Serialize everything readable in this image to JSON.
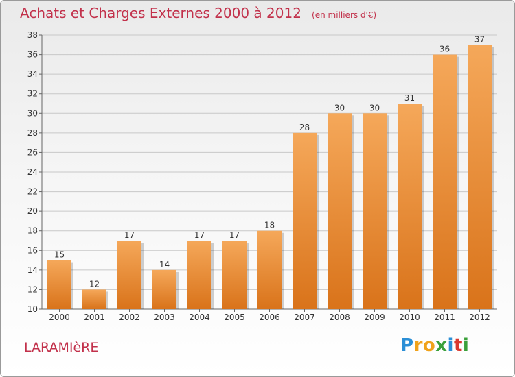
{
  "title": "Achats et Charges Externes 2000 à 2012",
  "subtitle": "(en milliers d'€)",
  "commune": "LARAMIèRE",
  "logo": {
    "letters": [
      "P",
      "r",
      "o",
      "x",
      "i",
      "t",
      "i"
    ],
    "colors": [
      "#2b8fd6",
      "#f0a21b",
      "#f0a21b",
      "#3aa03a",
      "#2b8fd6",
      "#d9382f",
      "#3aa03a"
    ]
  },
  "colors": {
    "bar": "#f0922e",
    "bar_light": "#f5a85a",
    "bar_dark": "#d9731a",
    "title": "#c2314b",
    "grid": "#c8c8c8"
  },
  "chart_data": {
    "type": "bar",
    "categories": [
      "2000",
      "2001",
      "2002",
      "2003",
      "2004",
      "2005",
      "2006",
      "2007",
      "2008",
      "2009",
      "2010",
      "2011",
      "2012"
    ],
    "values": [
      15,
      12,
      17,
      14,
      17,
      17,
      18,
      28,
      30,
      30,
      31,
      36,
      37
    ],
    "ylim": [
      10,
      38
    ],
    "yticks": [
      10,
      12,
      14,
      16,
      18,
      20,
      22,
      24,
      26,
      28,
      30,
      32,
      34,
      36,
      38
    ],
    "grid": true,
    "data_labels": true
  }
}
